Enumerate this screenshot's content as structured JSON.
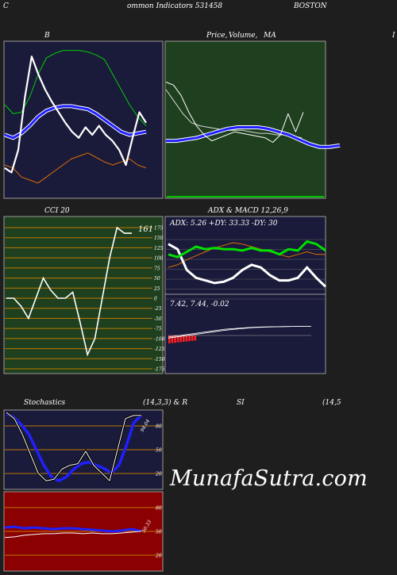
{
  "header": {
    "left": "C",
    "middle": "ommon  Indicators 531458",
    "right": "BOSTON"
  },
  "panels": {
    "bb": {
      "title": "B"
    },
    "price": {
      "title1": "Price,",
      "title2": "Volume,",
      "title3": "MA",
      "right_mark": "I"
    },
    "cci": {
      "title": "CCI 20",
      "value_label": "161"
    },
    "adx": {
      "title": "ADX  & MACD 12,26,9",
      "readout": "ADX: 5.26  +DY: 33.33 -DY: 30",
      "macd_readout": "7.42,  7.44,  -0.02"
    },
    "stoch": {
      "title_left": "Stochastics",
      "title_mid": "(14,3,3) & R",
      "title_right": "SI",
      "title_far": "(14,5",
      "value_label": "94.04"
    },
    "rsi": {
      "value_label": "50.33"
    }
  },
  "brand": "MunafaSutra.com",
  "chart_data": [
    {
      "type": "line",
      "title": "B",
      "series": [
        {
          "color": "#ffffff",
          "values": [
            18,
            15,
            30,
            65,
            92,
            80,
            70,
            62,
            55,
            48,
            42,
            38,
            45,
            40,
            46,
            40,
            36,
            30,
            20,
            38,
            55,
            48
          ]
        },
        {
          "color": "#00d000",
          "values": [
            60,
            54,
            55,
            65,
            80,
            91,
            94,
            96,
            96,
            96,
            95,
            93,
            90,
            80,
            70,
            60,
            52,
            46
          ]
        },
        {
          "color": "#2020ff",
          "values": [
            40,
            38,
            41,
            46,
            52,
            56,
            58,
            59,
            59,
            58,
            57,
            54,
            50,
            46,
            42,
            40,
            41,
            42
          ]
        },
        {
          "color": "#e07000",
          "values": [
            20,
            18,
            12,
            10,
            8,
            12,
            16,
            20,
            24,
            26,
            28,
            25,
            22,
            20,
            22,
            24,
            20,
            18
          ]
        }
      ]
    },
    {
      "type": "line",
      "title": "Price,  Volume,  MA",
      "series": [
        {
          "color": "#ffffff",
          "values": [
            75,
            73,
            66,
            55,
            46,
            40,
            36,
            38,
            40,
            42,
            41,
            40,
            39,
            38,
            35,
            40,
            54,
            42,
            55
          ]
        },
        {
          "color": "#2020ff",
          "values": [
            36,
            36,
            37,
            38,
            40,
            42,
            44,
            45,
            45,
            45,
            44,
            42,
            40,
            37,
            34,
            32,
            32,
            33
          ]
        },
        {
          "color": "#d8d8d8",
          "values": [
            70,
            62,
            54,
            48,
            46,
            45,
            44,
            43,
            43,
            43,
            42,
            41,
            41,
            40,
            40,
            39,
            38
          ]
        }
      ]
    },
    {
      "type": "line",
      "title": "CCI 20",
      "yticks": [
        175,
        150,
        125,
        100,
        75,
        50,
        25,
        0,
        -25,
        -50,
        -75,
        -100,
        -125,
        -150,
        -175
      ],
      "series": [
        {
          "color": "#ffffff",
          "values": [
            0,
            0,
            -20,
            -50,
            0,
            50,
            20,
            0,
            0,
            15,
            -60,
            -140,
            -100,
            0,
            100,
            175,
            161,
            161
          ]
        }
      ]
    },
    {
      "type": "line",
      "title": "ADX  & MACD 12,26,9",
      "series": [
        {
          "name": "+DY",
          "color": "#00e000",
          "values": [
            30,
            28,
            32,
            36,
            34,
            35,
            34,
            34,
            33,
            35,
            33,
            33,
            30,
            34,
            33,
            40,
            38,
            33
          ]
        },
        {
          "name": "-DY",
          "color": "#e07000",
          "values": [
            20,
            22,
            26,
            29,
            32,
            35,
            37,
            39,
            38,
            36,
            34,
            32,
            30,
            28,
            30,
            32,
            30,
            30
          ]
        },
        {
          "name": "ADX",
          "color": "#ffffff",
          "values": [
            38,
            34,
            18,
            12,
            10,
            8,
            9,
            12,
            18,
            22,
            20,
            14,
            10,
            10,
            12,
            20,
            12,
            5.26
          ]
        },
        {
          "name": "MACD",
          "color": "#ffffff",
          "values": [
            2,
            3,
            4,
            5,
            6,
            6.5,
            7,
            7.2,
            7.3,
            7.4,
            7.42
          ]
        },
        {
          "name": "Signal",
          "color": "#ffffff",
          "values": [
            1.5,
            2.5,
            3.5,
            4.5,
            5.5,
            6.2,
            6.8,
            7.1,
            7.3,
            7.4,
            7.44
          ]
        }
      ]
    },
    {
      "type": "line",
      "title": "Stochastics (14,3,3)",
      "yticks": [
        80,
        50,
        20
      ],
      "series": [
        {
          "color": "#2020ff",
          "values": [
            96,
            92,
            82,
            70,
            50,
            30,
            15,
            10,
            15,
            25,
            32,
            34,
            30,
            26,
            20,
            30,
            55,
            85,
            94.04
          ]
        },
        {
          "color": "#ffffff",
          "values": [
            98,
            90,
            70,
            45,
            20,
            10,
            12,
            25,
            30,
            32,
            48,
            30,
            20,
            10,
            50,
            90,
            94,
            94.04
          ]
        }
      ]
    },
    {
      "type": "line",
      "title": "RSI",
      "yticks": [
        80,
        50,
        20
      ],
      "series": [
        {
          "color": "#2020ff",
          "values": [
            55,
            56,
            54,
            55,
            54,
            53,
            54,
            54,
            53,
            52,
            51,
            50,
            51,
            53,
            50.33
          ]
        },
        {
          "color": "#ffffff",
          "values": [
            42,
            43,
            45,
            46,
            47,
            47,
            48,
            48,
            47,
            48,
            47,
            47,
            48,
            49,
            50.33
          ]
        }
      ]
    }
  ]
}
